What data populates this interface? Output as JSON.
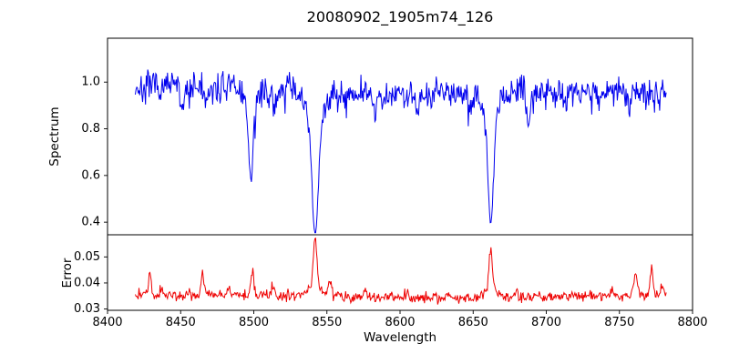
{
  "chart_data": {
    "type": "line",
    "title": "20080902_1905m74_126",
    "xlabel": "Wavelength",
    "xlim": [
      8400,
      8800
    ],
    "x_data_range": [
      8419,
      8782
    ],
    "points_per_series": 728,
    "noise_seed": 7,
    "grid": "off",
    "legend": "none",
    "x_ticks": [
      {
        "value": 8400,
        "label": "8400"
      },
      {
        "value": 8450,
        "label": "8450"
      },
      {
        "value": 8500,
        "label": "8500"
      },
      {
        "value": 8550,
        "label": "8550"
      },
      {
        "value": 8600,
        "label": "8600"
      },
      {
        "value": 8650,
        "label": "8650"
      },
      {
        "value": 8700,
        "label": "8700"
      },
      {
        "value": 8750,
        "label": "8750"
      },
      {
        "value": 8800,
        "label": "8800"
      }
    ],
    "panels": [
      {
        "name": "spectrum",
        "ylabel": "Spectrum",
        "line_color": "#0000ee",
        "ylim": [
          0.346,
          1.188
        ],
        "y_ticks": [
          {
            "value": 1.0,
            "label": "1.0"
          },
          {
            "value": 0.8,
            "label": "0.8"
          },
          {
            "value": 0.6,
            "label": "0.6"
          },
          {
            "value": 0.4,
            "label": "0.4"
          }
        ],
        "continuum_level": 0.962,
        "noise_sigma": 0.032,
        "absorption_lines": [
          {
            "center": 8498,
            "depth": 0.34,
            "sigma": 1.7
          },
          {
            "center": 8498,
            "depth": 0.05,
            "sigma": 4.5
          },
          {
            "center": 8542,
            "depth": 0.52,
            "sigma": 2.2
          },
          {
            "center": 8542,
            "depth": 0.1,
            "sigma": 6.5
          },
          {
            "center": 8662,
            "depth": 0.47,
            "sigma": 2.0
          },
          {
            "center": 8662,
            "depth": 0.09,
            "sigma": 5.5
          },
          {
            "center": 8451,
            "depth": 0.1,
            "sigma": 1.3
          },
          {
            "center": 8468,
            "depth": 0.08,
            "sigma": 1.2
          },
          {
            "center": 8514,
            "depth": 0.09,
            "sigma": 1.3
          },
          {
            "center": 8583,
            "depth": 0.07,
            "sigma": 1.2
          },
          {
            "center": 8611,
            "depth": 0.06,
            "sigma": 1.2
          },
          {
            "center": 8648,
            "depth": 0.06,
            "sigma": 1.2
          },
          {
            "center": 8688,
            "depth": 0.12,
            "sigma": 1.5
          },
          {
            "center": 8713,
            "depth": 0.06,
            "sigma": 1.2
          },
          {
            "center": 8736,
            "depth": 0.06,
            "sigma": 1.2
          },
          {
            "center": 8757,
            "depth": 0.07,
            "sigma": 1.2
          }
        ]
      },
      {
        "name": "error",
        "ylabel": "Error",
        "line_color": "#ee0000",
        "ylim": [
          0.0295,
          0.0585
        ],
        "y_ticks": [
          {
            "value": 0.05,
            "label": "0.05"
          },
          {
            "value": 0.04,
            "label": "0.04"
          },
          {
            "value": 0.03,
            "label": "0.03"
          }
        ],
        "baseline_level": 0.0348,
        "noise_sigma": 0.001,
        "peaks": [
          {
            "center": 8429,
            "height": 0.0085,
            "sigma": 1.0
          },
          {
            "center": 8437,
            "height": 0.003,
            "sigma": 0.8
          },
          {
            "center": 8465,
            "height": 0.0085,
            "sigma": 1.0
          },
          {
            "center": 8483,
            "height": 0.003,
            "sigma": 0.8
          },
          {
            "center": 8499,
            "height": 0.009,
            "sigma": 1.0
          },
          {
            "center": 8513,
            "height": 0.0045,
            "sigma": 0.8
          },
          {
            "center": 8542,
            "height": 0.0185,
            "sigma": 1.2
          },
          {
            "center": 8542,
            "height": 0.0045,
            "sigma": 4.0
          },
          {
            "center": 8552,
            "height": 0.0055,
            "sigma": 1.0
          },
          {
            "center": 8576,
            "height": 0.003,
            "sigma": 0.8
          },
          {
            "center": 8605,
            "height": 0.0025,
            "sigma": 0.8
          },
          {
            "center": 8633,
            "height": 0.002,
            "sigma": 0.8
          },
          {
            "center": 8662,
            "height": 0.0145,
            "sigma": 1.2
          },
          {
            "center": 8662,
            "height": 0.004,
            "sigma": 3.5
          },
          {
            "center": 8680,
            "height": 0.003,
            "sigma": 0.8
          },
          {
            "center": 8745,
            "height": 0.003,
            "sigma": 0.8
          },
          {
            "center": 8761,
            "height": 0.0085,
            "sigma": 1.2
          },
          {
            "center": 8772,
            "height": 0.0105,
            "sigma": 1.0
          },
          {
            "center": 8779,
            "height": 0.004,
            "sigma": 0.8
          }
        ]
      }
    ]
  }
}
